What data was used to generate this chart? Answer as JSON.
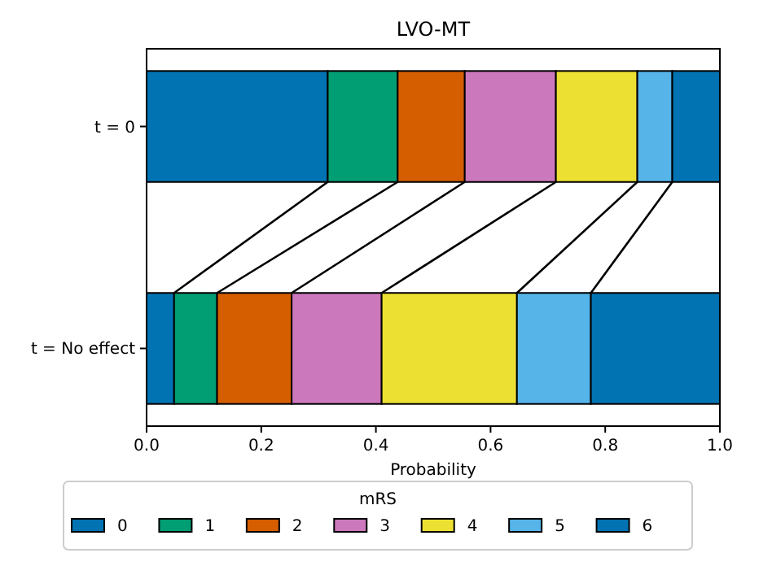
{
  "chart_data": {
    "type": "bar",
    "orientation": "horizontal",
    "stacked": true,
    "title": "LVO-MT",
    "xlabel": "Probability",
    "legend_title": "mRS",
    "legend": "bottom",
    "categories": [
      "t = 0",
      "t = No effect"
    ],
    "xlim": [
      0,
      1
    ],
    "xticks": [
      {
        "value": 0,
        "label": "0.0"
      },
      {
        "value": 0.2,
        "label": "0.2"
      },
      {
        "value": 0.4,
        "label": "0.4"
      },
      {
        "value": 0.6,
        "label": "0.6"
      },
      {
        "value": 0.8,
        "label": "0.8"
      },
      {
        "value": 1,
        "label": "1.0"
      }
    ],
    "series": [
      {
        "name": "0",
        "color": "#0173b2",
        "values": [
          0.316,
          0.048
        ]
      },
      {
        "name": "1",
        "color": "#029e73",
        "values": [
          0.122,
          0.075
        ]
      },
      {
        "name": "2",
        "color": "#d55e00",
        "values": [
          0.117,
          0.13
        ]
      },
      {
        "name": "3",
        "color": "#cc78bc",
        "values": [
          0.159,
          0.157
        ]
      },
      {
        "name": "4",
        "color": "#ece133",
        "values": [
          0.142,
          0.236
        ]
      },
      {
        "name": "5",
        "color": "#56b4e9",
        "values": [
          0.061,
          0.129
        ]
      },
      {
        "name": "6",
        "color": "#0173b2",
        "values": [
          0.083,
          0.225
        ]
      }
    ]
  }
}
